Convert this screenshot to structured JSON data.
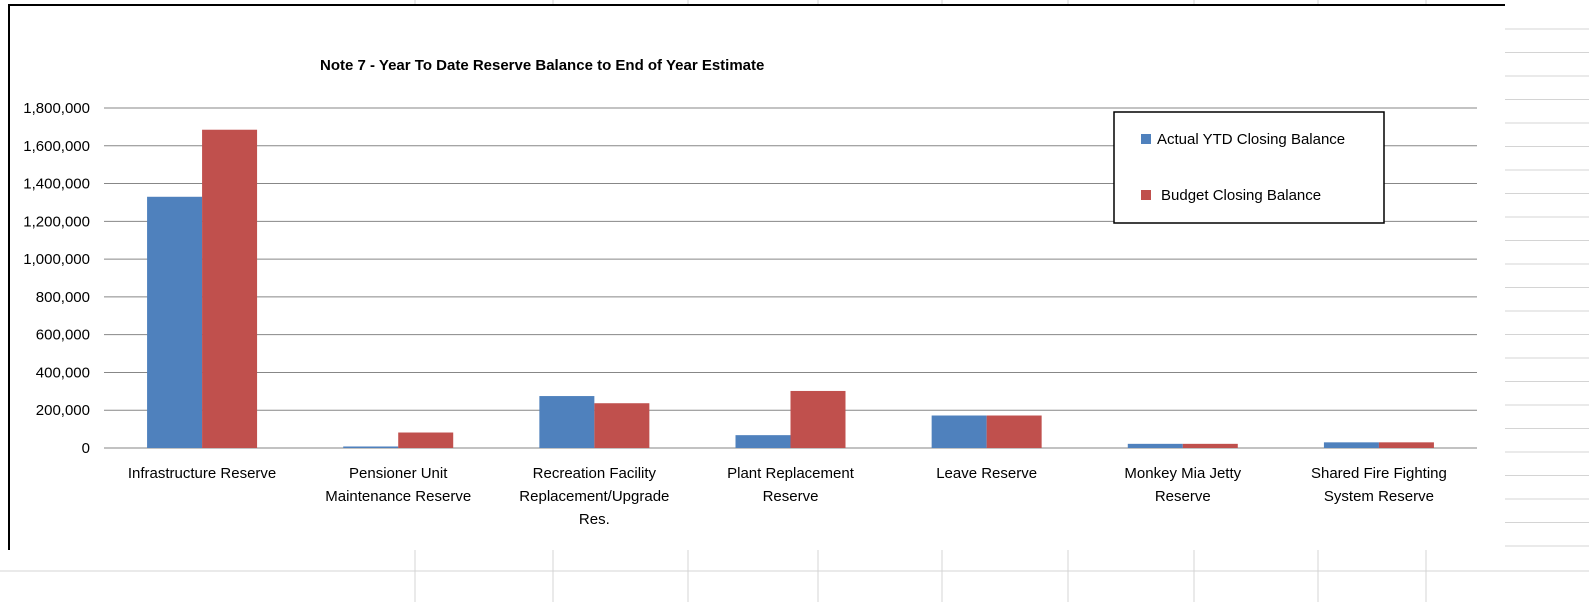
{
  "chart_data": {
    "type": "bar",
    "title": "Note 7 - Year To Date Reserve Balance to End of Year Estimate",
    "xlabel": "",
    "ylabel": "",
    "ylim": [
      0,
      1800000
    ],
    "yticks": [
      0,
      200000,
      400000,
      600000,
      800000,
      1000000,
      1200000,
      1400000,
      1600000,
      1800000
    ],
    "ytick_labels": [
      "0",
      "200,000",
      "400,000",
      "600,000",
      "800,000",
      "1,000,000",
      "1,200,000",
      "1,400,000",
      "1,600,000",
      "1,800,000"
    ],
    "grid": true,
    "legend_position": "top-right",
    "categories": [
      [
        "Infrastructure Reserve"
      ],
      [
        "Pensioner Unit",
        "Maintenance Reserve"
      ],
      [
        "Recreation Facility",
        "Replacement/Upgrade",
        "Res."
      ],
      [
        "Plant Replacement",
        "Reserve"
      ],
      [
        "Leave Reserve"
      ],
      [
        "Monkey Mia Jetty",
        "Reserve"
      ],
      [
        "Shared Fire Fighting",
        "System Reserve"
      ]
    ],
    "series": [
      {
        "name": "Actual YTD Closing Balance",
        "color": "#4f81bd",
        "values": [
          1330000,
          8000,
          275000,
          68000,
          172000,
          22000,
          30000
        ]
      },
      {
        "name": "Budget Closing Balance",
        "color": "#c0504d",
        "values": [
          1685000,
          82000,
          237000,
          302000,
          172000,
          22000,
          30000
        ]
      }
    ]
  }
}
